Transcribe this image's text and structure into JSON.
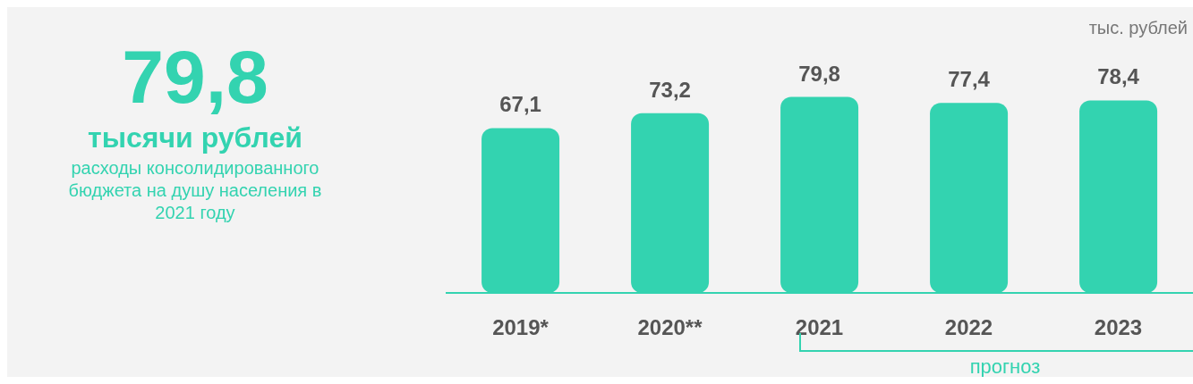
{
  "chart_data": {
    "type": "bar",
    "ylabel": "тыс. рублей",
    "categories": [
      "2019*",
      "2020**",
      "2021",
      "2022",
      "2023"
    ],
    "values": [
      67.1,
      73.2,
      79.8,
      77.4,
      78.4
    ],
    "value_labels": [
      "67,1",
      "73,2",
      "79,8",
      "77,4",
      "78,4"
    ],
    "color": "#33d3b0",
    "tick_labels": "x",
    "grid": false,
    "legend": false,
    "annotations": [
      "79,8",
      "тысячи рублей",
      "расходы консолидированного бюджета на душу населения в 2021 году",
      "прогноз"
    ]
  }
}
